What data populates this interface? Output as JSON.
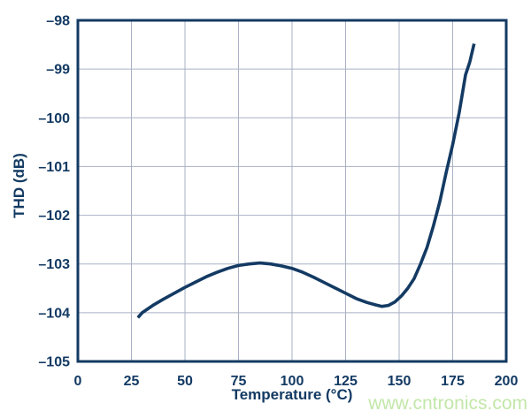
{
  "colors": {
    "axis_navy": "#133a63",
    "grid": "#a9b1c4",
    "background": "#ffffff",
    "watermark_green": "#c2e7a9"
  },
  "watermark": {
    "text": "www.cntronics.com"
  },
  "chart_data": {
    "type": "line",
    "title": "",
    "xlabel": "Temperature (°C)",
    "ylabel": "THD (dB)",
    "xlim": [
      0,
      200
    ],
    "ylim": [
      -105,
      -98
    ],
    "grid": true,
    "legend": false,
    "xticks": {
      "values": [
        0,
        25,
        50,
        75,
        100,
        125,
        150,
        175,
        200
      ],
      "labels": [
        "0",
        "25",
        "50",
        "75",
        "100",
        "125",
        "150",
        "175",
        "200"
      ]
    },
    "yticks": {
      "values": [
        -98,
        -99,
        -100,
        -101,
        -102,
        -103,
        -104,
        -105
      ],
      "labels": [
        "–98",
        "–99",
        "–100",
        "–101",
        "–102",
        "–103",
        "–104",
        "–105"
      ]
    },
    "series": [
      {
        "color": "#133a63",
        "points": [
          [
            28,
            -104.1
          ],
          [
            30,
            -104.0
          ],
          [
            35,
            -103.85
          ],
          [
            40,
            -103.72
          ],
          [
            45,
            -103.6
          ],
          [
            50,
            -103.48
          ],
          [
            55,
            -103.37
          ],
          [
            60,
            -103.26
          ],
          [
            65,
            -103.17
          ],
          [
            70,
            -103.09
          ],
          [
            75,
            -103.03
          ],
          [
            80,
            -103.0
          ],
          [
            85,
            -102.98
          ],
          [
            90,
            -103.0
          ],
          [
            95,
            -103.04
          ],
          [
            100,
            -103.09
          ],
          [
            105,
            -103.17
          ],
          [
            110,
            -103.27
          ],
          [
            115,
            -103.38
          ],
          [
            120,
            -103.49
          ],
          [
            125,
            -103.6
          ],
          [
            130,
            -103.71
          ],
          [
            135,
            -103.79
          ],
          [
            139,
            -103.84
          ],
          [
            142,
            -103.87
          ],
          [
            145,
            -103.85
          ],
          [
            148,
            -103.78
          ],
          [
            151,
            -103.66
          ],
          [
            154,
            -103.5
          ],
          [
            157,
            -103.3
          ],
          [
            160,
            -103.0
          ],
          [
            163,
            -102.66
          ],
          [
            166,
            -102.22
          ],
          [
            169,
            -101.72
          ],
          [
            172,
            -101.12
          ],
          [
            175,
            -100.55
          ],
          [
            178,
            -99.9
          ],
          [
            181,
            -99.12
          ],
          [
            183,
            -98.85
          ],
          [
            185,
            -98.48
          ]
        ]
      }
    ]
  }
}
